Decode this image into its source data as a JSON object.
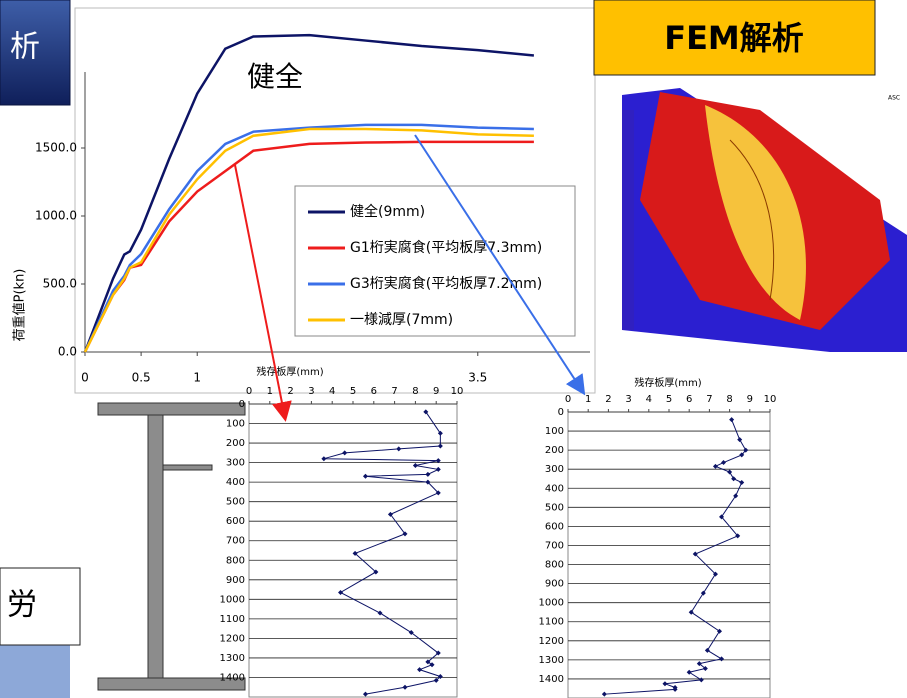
{
  "chart_data": [
    {
      "type": "line",
      "y_label": "荷重値P(kn)",
      "annotation": "健全",
      "x": [
        0,
        0.25,
        0.35,
        0.4,
        0.5,
        0.75,
        1,
        1.25,
        1.5,
        2,
        2.5,
        3,
        3.5,
        4
      ],
      "series": [
        {
          "name": "健全(9mm)",
          "color": "#0d1466",
          "values": [
            0,
            540,
            717,
            740,
            900,
            1420,
            1900,
            2230,
            2320,
            2330,
            2290,
            2250,
            2220,
            2180
          ]
        },
        {
          "name": "G1桁実腐食(平均板厚7.3mm)",
          "color": "#ee1c1c",
          "values": [
            0,
            420,
            530,
            620,
            640,
            960,
            1180,
            1330,
            1480,
            1530,
            1540,
            1545,
            1545,
            1545
          ]
        },
        {
          "name": "G3桁実腐食(平均板厚7.2mm)",
          "color": "#3a6fe8",
          "values": [
            0,
            450,
            560,
            640,
            720,
            1050,
            1330,
            1530,
            1620,
            1650,
            1670,
            1670,
            1650,
            1640
          ]
        },
        {
          "name": "一様減厚(7mm)",
          "color": "#ffc000",
          "values": [
            0,
            420,
            540,
            620,
            660,
            1010,
            1270,
            1480,
            1590,
            1640,
            1640,
            1630,
            1600,
            1590
          ]
        }
      ],
      "xlim": [
        0,
        4.5
      ],
      "xticks": [
        0,
        0.5,
        1,
        3.5
      ],
      "ylim": [
        0,
        2500
      ],
      "yticks": [
        {
          "value": 0,
          "label": "0.0"
        },
        {
          "value": 500,
          "label": "500.0"
        },
        {
          "value": 1000,
          "label": "1000.0"
        },
        {
          "value": 1500,
          "label": "1500.0"
        }
      ]
    },
    {
      "type": "profile",
      "title": "残存板厚(mm)",
      "color": "#0d1466",
      "x": [
        8.5,
        9.2,
        9.2,
        7.2,
        4.6,
        3.6,
        9.1,
        8.0,
        9.1,
        8.6,
        5.6,
        8.6,
        9.1,
        6.8,
        7.5,
        5.1,
        6.1,
        4.4,
        6.3,
        7.8,
        9.1,
        8.6,
        8.8,
        8.2,
        9.2,
        9.0,
        7.5,
        5.6
      ],
      "values": [
        40,
        150,
        215,
        230,
        250,
        280,
        290,
        315,
        335,
        360,
        370,
        400,
        455,
        565,
        665,
        765,
        860,
        965,
        1070,
        1170,
        1275,
        1320,
        1335,
        1360,
        1395,
        1415,
        1450,
        1485
      ],
      "xlim": [
        0,
        10
      ],
      "xticks": [
        0,
        1,
        2,
        3,
        4,
        5,
        6,
        7,
        8,
        9,
        10
      ],
      "ylim": [
        1500,
        0
      ],
      "yticks": [
        0,
        100,
        200,
        300,
        400,
        500,
        600,
        700,
        800,
        900,
        1000,
        1100,
        1200,
        1300,
        1400
      ],
      "grid": true
    },
    {
      "type": "profile",
      "title": "残存板厚(mm)",
      "color": "#0d1466",
      "x": [
        8.1,
        8.5,
        8.8,
        8.6,
        7.7,
        7.3,
        8.0,
        8.2,
        8.6,
        8.3,
        7.6,
        8.4,
        6.3,
        7.3,
        6.7,
        6.1,
        7.5,
        6.9,
        7.6,
        6.5,
        6.8,
        6.0,
        6.6,
        4.8,
        5.3,
        5.3,
        1.8
      ],
      "values": [
        40,
        145,
        200,
        225,
        265,
        285,
        315,
        350,
        370,
        440,
        550,
        650,
        745,
        850,
        950,
        1050,
        1150,
        1250,
        1295,
        1320,
        1345,
        1365,
        1405,
        1425,
        1445,
        1455,
        1480
      ],
      "xlim": [
        0,
        10
      ],
      "xticks": [
        0,
        1,
        2,
        3,
        4,
        5,
        6,
        7,
        8,
        9,
        10
      ],
      "ylim": [
        1500,
        0
      ],
      "yticks": [
        0,
        100,
        200,
        300,
        400,
        500,
        600,
        700,
        800,
        900,
        1000,
        1100,
        1200,
        1300,
        1400
      ],
      "grid": true
    }
  ],
  "slide": {
    "fem_title": "FEM解析",
    "left_box": "析",
    "bottom_box": "労"
  }
}
